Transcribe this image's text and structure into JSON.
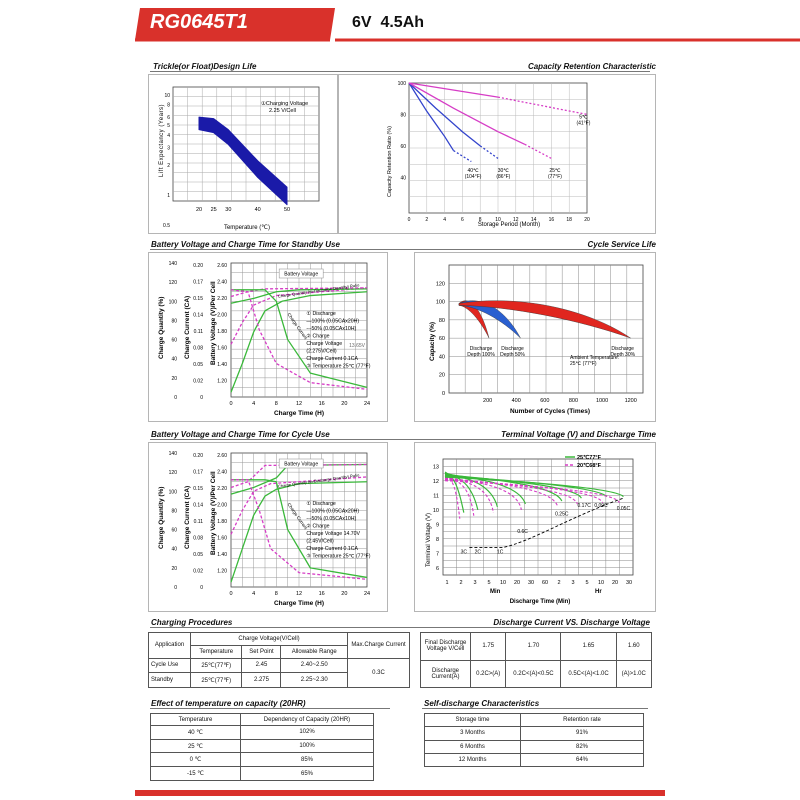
{
  "header": {
    "model": "RG0645T1",
    "spec": "6V  4.5Ah",
    "accent_color": "#d9312b"
  },
  "sections": {
    "design_life": "Trickle(or Float)Design Life",
    "capacity_retention": "Capacity  Retention  Characteristic",
    "standby": "Battery Voltage and Charge Time for Standby Use",
    "cycle_service": "Cycle Service Life",
    "cycle_use": "Battery Voltage and Charge Time for Cycle Use",
    "terminal_voltage": "Terminal Voltage (V) and Discharge Time",
    "charging_procedures": "Charging Procedures",
    "discharge_vs_voltage": "Discharge Current VS. Discharge Voltage",
    "temp_effect": "Effect of temperature on capacity (20HR)",
    "self_discharge": "Self-discharge Characteristics"
  },
  "chart_data": [
    {
      "type": "area",
      "xlabel": "Temperature (℃)",
      "ylabel": "Lift  Expectancy (Years)",
      "xticks": [
        "20",
        "25",
        "30",
        "40",
        "50"
      ],
      "yticks": [
        "10",
        "8",
        "6",
        "5",
        "4",
        "3",
        "2",
        "1",
        "0.5"
      ],
      "annotation": [
        "①Charging Voltage",
        "2.25 V/Cell"
      ],
      "band_upper": [
        [
          20,
          6
        ],
        [
          25,
          5.8
        ],
        [
          30,
          4.5
        ],
        [
          40,
          2.2
        ],
        [
          50,
          1.2
        ]
      ],
      "band_lower": [
        [
          20,
          4.5
        ],
        [
          25,
          4.2
        ],
        [
          30,
          3.2
        ],
        [
          40,
          1.5
        ],
        [
          50,
          0.8
        ]
      ],
      "colors": {
        "band": "#1a1aa8"
      }
    },
    {
      "type": "line",
      "xlabel": "Storage Period (Month)",
      "ylabel": "Capacity Retention Ratio (%)",
      "xticks": [
        "0",
        "2",
        "4",
        "6",
        "8",
        "10",
        "12",
        "14",
        "16",
        "18",
        "20"
      ],
      "yticks": [
        "100",
        "80",
        "60",
        "40"
      ],
      "series": [
        {
          "name": "40℃ (104°F)",
          "color": "#3344cc",
          "points": [
            [
              0,
              100
            ],
            [
              2,
              82
            ],
            [
              4,
              66
            ],
            [
              5,
              57
            ],
            [
              7,
              50
            ]
          ]
        },
        {
          "name": "30℃ (86°F)",
          "color": "#3344cc",
          "points": [
            [
              0,
              100
            ],
            [
              3,
              84
            ],
            [
              6,
              69
            ],
            [
              8,
              60
            ],
            [
              10,
              52
            ]
          ]
        },
        {
          "name": "25℃ (77°F)",
          "color": "#d63dc6",
          "points": [
            [
              0,
              100
            ],
            [
              5,
              84
            ],
            [
              10,
              69
            ],
            [
              13,
              61
            ],
            [
              16,
              52
            ]
          ]
        },
        {
          "name": "5℃ (41°F)",
          "color": "#d63dc6",
          "points": [
            [
              0,
              100
            ],
            [
              10,
              91
            ],
            [
              20,
              80
            ]
          ]
        }
      ]
    },
    {
      "type": "line",
      "xlabel": "Charge Time (H)",
      "yaxes": [
        "Charge Quantity (%)",
        "Charge Current (CA)",
        "Battery Voltage (V)/Per Cell"
      ],
      "xticks": [
        "0",
        "4",
        "8",
        "12",
        "16",
        "20",
        "24"
      ],
      "ticks_quantity": [
        "140",
        "120",
        "100",
        "80",
        "60",
        "40",
        "20",
        "0"
      ],
      "ticks_current": [
        "0.20",
        "0.17",
        "0.15",
        "0.14",
        "0.11",
        "0.08",
        "0.05",
        "0.02",
        "0"
      ],
      "ticks_voltage": [
        "2.60",
        "2.40",
        "2.20",
        "2.00",
        "1.80",
        "1.60",
        "1.40",
        "1.20"
      ],
      "labels": [
        "Battery Voltage",
        "Charge Quantity (to-Discharge Quantity) Ratio",
        "Charge Current",
        "13.65V"
      ],
      "legend": [
        "① Discharge",
        "—100% (0.05CAx20H)",
        "---50% (0.05CAx10H)",
        "② Charge",
        "Charge Voltage",
        "(2.275V/Cell)",
        "Charge Current 0.1CA",
        "③ Temperature 25℃ (77°F)"
      ]
    },
    {
      "type": "area",
      "xlabel": "Number of Cycles (Times)",
      "ylabel": "Capacity (%)",
      "xticks": [
        "200",
        "400",
        "600",
        "800",
        "1000",
        "1200"
      ],
      "yticks": [
        "120",
        "100",
        "80",
        "60",
        "40",
        "20",
        "0"
      ],
      "series": [
        {
          "name": "Discharge Depth 100%",
          "color": "#e0261f",
          "end_cycles": 210
        },
        {
          "name": "Discharge Depth 50%",
          "color": "#2a5fd0",
          "end_cycles": 430
        },
        {
          "name": "Discharge Depth 30%",
          "color": "#e0261f",
          "end_cycles": 1200
        }
      ],
      "annotation": [
        "Ambient Temperature:",
        "25℃ (77°F)"
      ]
    },
    {
      "type": "line",
      "xlabel": "Charge Time (H)",
      "yaxes": [
        "Charge Quantity (%)",
        "Charge Current (CA)",
        "Battery Voltage (V)/Per Cell"
      ],
      "xticks": [
        "0",
        "4",
        "8",
        "12",
        "16",
        "20",
        "24"
      ],
      "ticks_quantity": [
        "140",
        "120",
        "100",
        "80",
        "60",
        "40",
        "20",
        "0"
      ],
      "ticks_current": [
        "0.20",
        "0.17",
        "0.15",
        "0.14",
        "0.11",
        "0.08",
        "0.05",
        "0.02",
        "0"
      ],
      "ticks_voltage": [
        "2.60",
        "2.40",
        "2.20",
        "2.00",
        "1.80",
        "1.60",
        "1.40",
        "1.20"
      ],
      "labels": [
        "Battery Voltage",
        "Charge Quantity (to-Discharge Quantity) Ratio",
        "Charge Current"
      ],
      "legend": [
        "① Discharge",
        "—100% (0.05CAx20H)",
        "---50% (0.05CAx10H)",
        "② Charge",
        "Charge Voltage 14.70V",
        "(2.45V/Cell)",
        "Charge Current 0.1CA",
        "③ Temperature 25℃ (77°F)"
      ]
    },
    {
      "type": "line",
      "xlabel": "Discharge Time (Min)",
      "ylabel": "Terminal Voltage (V)",
      "xticks": [
        "1",
        "2",
        "3",
        "5",
        "10",
        "20",
        "30",
        "60",
        "2",
        "3",
        "5",
        "10",
        "20",
        "30"
      ],
      "xgroups": [
        "Min",
        "Hr"
      ],
      "yticks": [
        "13",
        "12",
        "11",
        "10",
        "9",
        "8",
        "7",
        "6"
      ],
      "legend": [
        "25℃77°F",
        "20℃68°F"
      ],
      "rates": [
        "3C",
        "2C",
        "1C",
        "0.6C",
        "0.25C",
        "0.17C",
        "0.09C",
        "0.05C"
      ]
    }
  ],
  "charging_table": {
    "headers": [
      "Application",
      "Charge Voltage(V/Cell)",
      "Max.Charge Current"
    ],
    "subheaders": [
      "Temperature",
      "Set Point",
      "Allowable Range"
    ],
    "rows": [
      [
        "Cycle Use",
        "25℃(77℉)",
        "2.45",
        "2.40~2.50"
      ],
      [
        "Standby",
        "25℃(77℉)",
        "2.275",
        "2.25~2.30"
      ]
    ],
    "max_current": "0.3C"
  },
  "discharge_table": {
    "row1_label": "Final Discharge Voltage V/Cell",
    "row1": [
      "1.75",
      "1.70",
      "1.65",
      "1.60"
    ],
    "row2_label": "Discharge Current(A)",
    "row2": [
      "0.2C>(A)",
      "0.2C<(A)<0.5C",
      "0.5C<(A)<1.0C",
      "(A)>1.0C"
    ]
  },
  "temp_table": {
    "headers": [
      "Temperature",
      "Dependency of Capacity (20HR)"
    ],
    "rows": [
      [
        "40 ℃",
        "102%"
      ],
      [
        "25 ℃",
        "100%"
      ],
      [
        "0 ℃",
        "85%"
      ],
      [
        "-15 ℃",
        "65%"
      ]
    ]
  },
  "self_discharge_table": {
    "headers": [
      "Storage time",
      "Retention rate"
    ],
    "rows": [
      [
        "3 Months",
        "91%"
      ],
      [
        "6 Months",
        "82%"
      ],
      [
        "12 Months",
        "64%"
      ]
    ]
  }
}
